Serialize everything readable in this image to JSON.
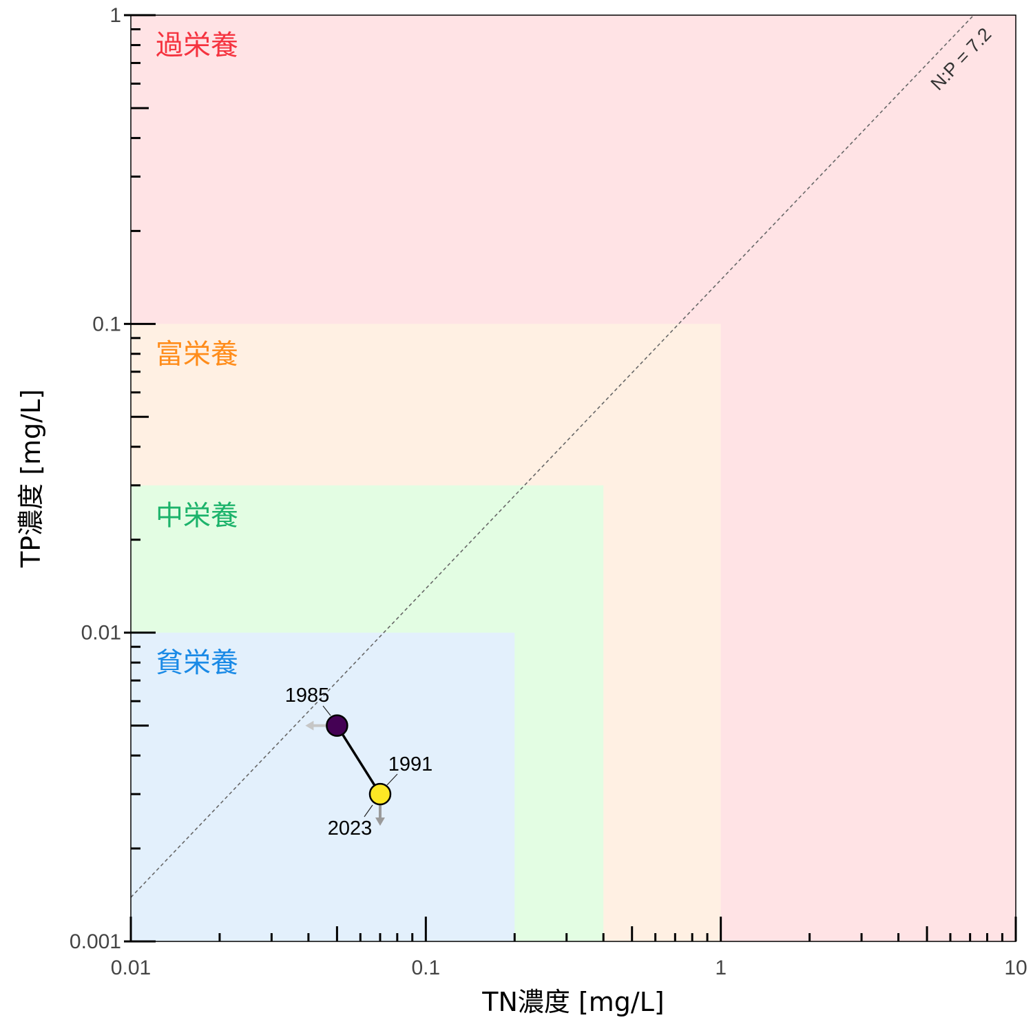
{
  "chart_data": {
    "type": "scatter",
    "xlabel": "TN濃度 [mg/L]",
    "ylabel": "TP濃度 [mg/L]",
    "x_scale": "log",
    "y_scale": "log",
    "xlim": [
      0.01,
      10
    ],
    "ylim": [
      0.001,
      1
    ],
    "x_ticks": [
      {
        "value": 0.01,
        "label": "0.01"
      },
      {
        "value": 0.1,
        "label": "0.1"
      },
      {
        "value": 1,
        "label": "1"
      },
      {
        "value": 10,
        "label": "10"
      }
    ],
    "y_ticks": [
      {
        "value": 0.001,
        "label": "0.001"
      },
      {
        "value": 0.01,
        "label": "0.01"
      },
      {
        "value": 0.1,
        "label": "0.1"
      },
      {
        "value": 1,
        "label": "1"
      }
    ],
    "zones": [
      {
        "label": "過栄養",
        "tn_max": 10,
        "tp_max": 1,
        "fill": "#ffe3e5",
        "text_color": "#f5333f"
      },
      {
        "label": "富栄養",
        "tn_max": 1,
        "tp_max": 0.1,
        "fill": "#fff0e3",
        "text_color": "#ff8c1a"
      },
      {
        "label": "中栄養",
        "tn_max": 0.4,
        "tp_max": 0.03,
        "fill": "#e3fde3",
        "text_color": "#1cb36b"
      },
      {
        "label": "貧栄養",
        "tn_max": 0.2,
        "tp_max": 0.01,
        "fill": "#e3f0fc",
        "text_color": "#1a8ae6"
      }
    ],
    "ratio_line": {
      "label": "N:P = 7.2",
      "ratio": 7.2,
      "style": "dashed",
      "color": "#666666"
    },
    "points": [
      {
        "label": "1985",
        "tn": 0.05,
        "tp": 0.005,
        "color": "#440154",
        "arrow": "left"
      },
      {
        "label": "1991",
        "tn": 0.07,
        "tp": 0.003,
        "color": "#fde725",
        "arrow": "none"
      },
      {
        "label": "2023",
        "tn": 0.07,
        "tp": 0.003,
        "color": "#fde725",
        "arrow": "down"
      }
    ],
    "trajectory": [
      "1985",
      "1991"
    ],
    "grid": false,
    "legend": "none"
  }
}
